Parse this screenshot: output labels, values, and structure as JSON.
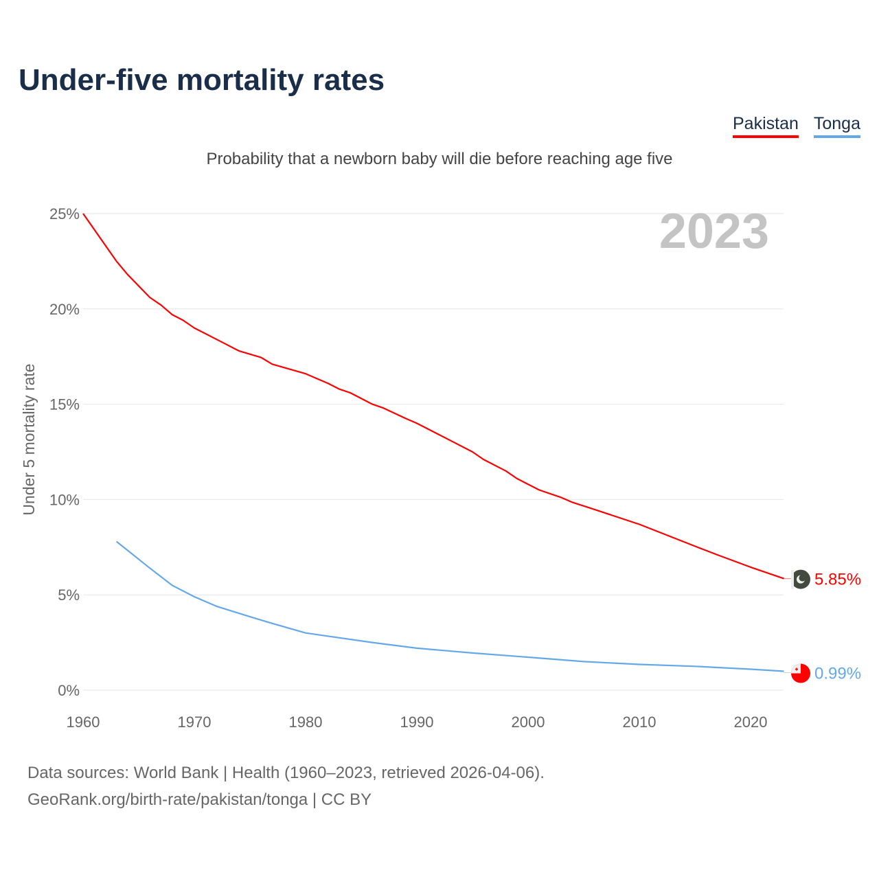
{
  "title": "Under-five mortality rates",
  "subtitle": "Probability that a newborn baby will die before reaching age five",
  "legend": [
    {
      "name": "Pakistan",
      "color": "#ff0000"
    },
    {
      "name": "Tonga",
      "color": "#64a8ea"
    }
  ],
  "footer": {
    "line1": "Data sources: World Bank | Health (1960–2023, retrieved 2026-04-06).",
    "line2": "GeoRank.org/birth-rate/pakistan/tonga | CC BY"
  },
  "chart_data": {
    "type": "line",
    "title": "Under-five mortality rates",
    "ylabel": "Under 5 mortality rate",
    "xlabel": "",
    "year_label": "2023",
    "xlim": [
      1960,
      2023
    ],
    "ylim": [
      0,
      25
    ],
    "xticks": [
      1960,
      1970,
      1980,
      1990,
      2000,
      2010,
      2020
    ],
    "yticks": [
      0,
      5,
      10,
      15,
      20,
      25
    ],
    "ytick_labels": [
      "0%",
      "5%",
      "10%",
      "15%",
      "20%",
      "25%"
    ],
    "grid": true,
    "series": [
      {
        "name": "Pakistan",
        "color": "#ff0000",
        "end_label": "5.85%",
        "points": [
          [
            1960,
            25.0
          ],
          [
            1963,
            22.5
          ],
          [
            1964,
            21.8
          ],
          [
            1966,
            20.6
          ],
          [
            1967,
            20.2
          ],
          [
            1968,
            19.7
          ],
          [
            1969,
            19.4
          ],
          [
            1970,
            19.0
          ],
          [
            1972,
            18.4
          ],
          [
            1974,
            17.8
          ],
          [
            1976,
            17.45
          ],
          [
            1977,
            17.1
          ],
          [
            1980,
            16.6
          ],
          [
            1982,
            16.1
          ],
          [
            1983,
            15.8
          ],
          [
            1984,
            15.6
          ],
          [
            1986,
            15.0
          ],
          [
            1987,
            14.8
          ],
          [
            1989,
            14.25
          ],
          [
            1990,
            14.0
          ],
          [
            1993,
            13.1
          ],
          [
            1995,
            12.5
          ],
          [
            1996,
            12.1
          ],
          [
            1998,
            11.5
          ],
          [
            1999,
            11.1
          ],
          [
            2001,
            10.5
          ],
          [
            2003,
            10.1
          ],
          [
            2004,
            9.85
          ],
          [
            2006,
            9.47
          ],
          [
            2010,
            8.7
          ],
          [
            2015,
            7.55
          ],
          [
            2017,
            7.1
          ],
          [
            2020,
            6.45
          ],
          [
            2023,
            5.85
          ]
        ]
      },
      {
        "name": "Tonga",
        "color": "#64a8ea",
        "end_label": "0.99%",
        "points": [
          [
            1963,
            7.8
          ],
          [
            1966,
            6.4
          ],
          [
            1968,
            5.5
          ],
          [
            1970,
            4.9
          ],
          [
            1972,
            4.4
          ],
          [
            1975,
            3.85
          ],
          [
            1977,
            3.5
          ],
          [
            1980,
            3.0
          ],
          [
            1983,
            2.75
          ],
          [
            1986,
            2.5
          ],
          [
            1990,
            2.2
          ],
          [
            1995,
            1.95
          ],
          [
            2000,
            1.73
          ],
          [
            2005,
            1.5
          ],
          [
            2010,
            1.35
          ],
          [
            2015,
            1.25
          ],
          [
            2020,
            1.1
          ],
          [
            2023,
            0.99
          ]
        ]
      }
    ]
  }
}
